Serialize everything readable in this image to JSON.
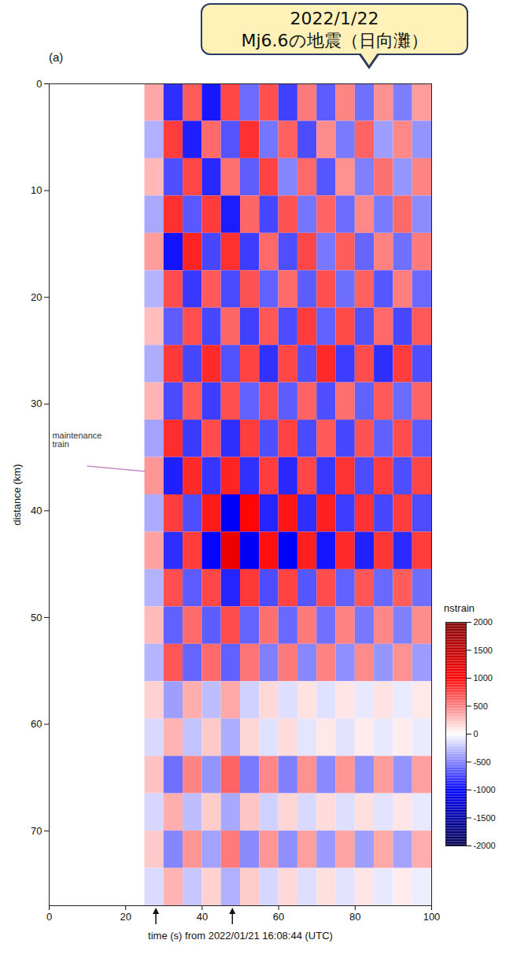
{
  "chart_data": {
    "type": "heatmap",
    "title": "2022/1/22",
    "subtitle": "Mj6.6の地震（日向灘）",
    "panel": "(a)",
    "x_label": "time (s) from 2022/01/21 16:08:44 (UTC)",
    "y_label": "distance (km)",
    "xlim": [
      0,
      100
    ],
    "xticks": [
      0,
      20,
      40,
      60,
      80,
      100
    ],
    "ylim": [
      0,
      77
    ],
    "yticks": [
      0,
      10,
      20,
      30,
      40,
      50,
      60,
      70
    ],
    "legend": "right",
    "time_bins": [
      0,
      5,
      10,
      15,
      20,
      25,
      30,
      35,
      40,
      45,
      50,
      55,
      60,
      65,
      70,
      75,
      80,
      85,
      90,
      95,
      100
    ],
    "distance_bins": [
      0,
      3.5,
      7,
      10.5,
      14,
      17.5,
      21,
      24.5,
      28,
      31.5,
      35,
      38.5,
      42,
      45.5,
      49,
      52.5,
      56,
      59.5,
      63,
      66.5,
      70,
      73.5,
      77
    ],
    "values": [
      [
        0,
        0,
        0,
        0,
        0,
        350,
        -820,
        640,
        -910,
        720,
        -580,
        690,
        -750,
        520,
        -640,
        480,
        -560,
        430,
        -510,
        390
      ],
      [
        0,
        0,
        0,
        0,
        0,
        -310,
        760,
        -880,
        590,
        -670,
        810,
        -540,
        620,
        -700,
        450,
        -520,
        610,
        -380,
        470,
        -420
      ],
      [
        0,
        0,
        0,
        0,
        0,
        280,
        -690,
        720,
        -840,
        560,
        -630,
        740,
        -480,
        590,
        -660,
        430,
        -500,
        560,
        -410,
        480
      ],
      [
        0,
        0,
        0,
        0,
        0,
        -340,
        810,
        -650,
        770,
        -890,
        600,
        -720,
        680,
        -540,
        610,
        -580,
        470,
        -520,
        590,
        -450
      ],
      [
        0,
        0,
        0,
        0,
        0,
        390,
        -930,
        860,
        -720,
        810,
        -760,
        590,
        -690,
        720,
        -530,
        640,
        -600,
        490,
        -560,
        520
      ],
      [
        0,
        0,
        0,
        0,
        0,
        -300,
        700,
        -780,
        650,
        -710,
        680,
        -620,
        580,
        -640,
        690,
        -570,
        620,
        -660,
        510,
        -590
      ],
      [
        0,
        0,
        0,
        0,
        0,
        260,
        -640,
        690,
        -720,
        600,
        -750,
        660,
        -700,
        760,
        -620,
        710,
        -680,
        590,
        -720,
        650
      ],
      [
        0,
        0,
        0,
        0,
        0,
        -320,
        780,
        -720,
        830,
        -680,
        740,
        -810,
        720,
        -690,
        840,
        -760,
        700,
        -820,
        760,
        -690
      ],
      [
        0,
        0,
        0,
        0,
        0,
        300,
        -710,
        650,
        -760,
        690,
        -620,
        700,
        -640,
        610,
        -690,
        570,
        -620,
        650,
        -580,
        610
      ],
      [
        0,
        0,
        0,
        0,
        0,
        -360,
        820,
        -770,
        700,
        -820,
        760,
        -690,
        740,
        -710,
        650,
        -720,
        680,
        -620,
        700,
        -640
      ],
      [
        0,
        0,
        0,
        0,
        0,
        410,
        -880,
        830,
        -790,
        860,
        -810,
        760,
        -840,
        720,
        -780,
        800,
        -700,
        760,
        -690,
        730
      ],
      [
        0,
        0,
        0,
        0,
        0,
        -330,
        760,
        -690,
        900,
        -1050,
        980,
        -860,
        910,
        -820,
        870,
        -760,
        800,
        -720,
        760,
        -700
      ],
      [
        0,
        0,
        0,
        0,
        0,
        370,
        -820,
        760,
        -980,
        1150,
        -1060,
        940,
        -1010,
        880,
        -920,
        840,
        -870,
        790,
        -830,
        760
      ],
      [
        0,
        0,
        0,
        0,
        0,
        -300,
        690,
        -640,
        720,
        -860,
        780,
        -700,
        740,
        -660,
        700,
        -620,
        660,
        -590,
        640,
        -570
      ],
      [
        0,
        0,
        0,
        0,
        0,
        270,
        -620,
        580,
        -640,
        700,
        -610,
        560,
        -590,
        520,
        -560,
        490,
        -530,
        470,
        -500,
        450
      ],
      [
        0,
        0,
        0,
        0,
        0,
        -290,
        660,
        -600,
        580,
        -620,
        540,
        -500,
        520,
        -470,
        490,
        -440,
        460,
        -410,
        430,
        -390
      ],
      [
        0,
        0,
        0,
        0,
        0,
        180,
        -380,
        320,
        -260,
        340,
        -180,
        150,
        -130,
        110,
        -120,
        100,
        -90,
        110,
        -80,
        90
      ],
      [
        0,
        0,
        0,
        0,
        0,
        -150,
        300,
        -240,
        210,
        -320,
        160,
        -120,
        140,
        -100,
        90,
        -110,
        80,
        -90,
        70,
        -80
      ],
      [
        0,
        0,
        0,
        0,
        0,
        240,
        -560,
        480,
        -420,
        610,
        -520,
        470,
        -500,
        430,
        -460,
        410,
        -440,
        390,
        -420,
        380
      ],
      [
        0,
        0,
        0,
        0,
        0,
        -160,
        320,
        -260,
        200,
        -340,
        230,
        -180,
        160,
        -150,
        140,
        -130,
        120,
        -110,
        100,
        -90
      ],
      [
        0,
        0,
        0,
        0,
        0,
        210,
        -480,
        420,
        -360,
        520,
        -460,
        410,
        -440,
        380,
        -400,
        360,
        -380,
        340,
        -360,
        320
      ],
      [
        0,
        0,
        0,
        0,
        0,
        -140,
        300,
        -220,
        180,
        -310,
        200,
        -160,
        150,
        -130,
        120,
        -110,
        100,
        -90,
        80,
        -70
      ]
    ],
    "colorbar": {
      "title": "nstrain",
      "range": [
        -2000,
        2000
      ],
      "ticks": [
        2000,
        1500,
        1000,
        500,
        0,
        -500,
        -1000,
        -1500,
        -2000
      ],
      "colors": [
        "#00004c",
        "#0000ff",
        "#ffffff",
        "#ff0000",
        "#800000"
      ]
    },
    "maintenance_train": {
      "x": [
        10,
        25
      ],
      "y": [
        35.8,
        36.3
      ]
    },
    "annotations": [
      {
        "text": "maintenance train",
        "x": 0.8,
        "y": 33.4
      }
    ],
    "arrows": [
      28,
      48
    ]
  }
}
